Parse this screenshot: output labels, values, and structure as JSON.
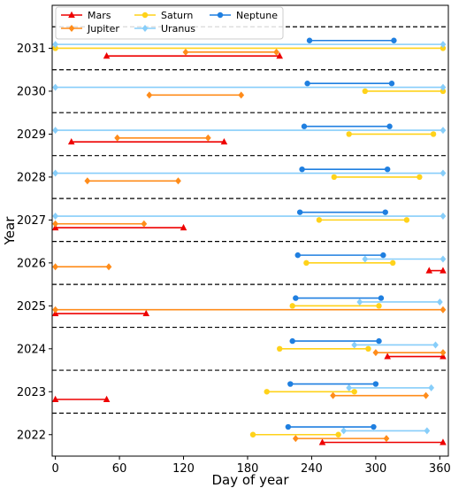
{
  "chart_data": {
    "type": "line",
    "title": "",
    "xlabel": "Day of year",
    "ylabel": "Year",
    "xlim": [
      -3,
      368
    ],
    "ylim": [
      2021.5,
      2032.0
    ],
    "x_ticks": [
      0,
      60,
      120,
      180,
      240,
      300,
      360
    ],
    "y_ticks": [
      2022,
      2023,
      2024,
      2025,
      2026,
      2027,
      2028,
      2029,
      2030,
      2031
    ],
    "year_separators": [
      2022.5,
      2023.5,
      2024.5,
      2025.5,
      2026.5,
      2027.5,
      2028.5,
      2029.5,
      2030.5,
      2031.5
    ],
    "grid": false,
    "legend_position": "top-left",
    "series": [
      {
        "name": "Mars",
        "color": "#ee0000",
        "marker": "triangle",
        "offset": -0.18,
        "intervals": [
          {
            "year": 2022,
            "start": 250,
            "end": 363
          },
          {
            "year": 2023,
            "start": 0,
            "end": 48
          },
          {
            "year": 2024,
            "start": 311,
            "end": 363
          },
          {
            "year": 2025,
            "start": 0,
            "end": 85
          },
          {
            "year": 2026,
            "start": 350,
            "end": 363
          },
          {
            "year": 2027,
            "start": 0,
            "end": 120
          },
          {
            "year": 2029,
            "start": 15,
            "end": 158
          },
          {
            "year": 2031,
            "start": 48,
            "end": 210
          }
        ]
      },
      {
        "name": "Jupiter",
        "color": "#ff8c1a",
        "marker": "diamond",
        "offset": -0.09,
        "intervals": [
          {
            "year": 2022,
            "start": 225,
            "end": 310
          },
          {
            "year": 2023,
            "start": 260,
            "end": 347
          },
          {
            "year": 2024,
            "start": 300,
            "end": 363
          },
          {
            "year": 2025,
            "start": 0,
            "end": 363
          },
          {
            "year": 2026,
            "start": 0,
            "end": 50
          },
          {
            "year": 2027,
            "start": 0,
            "end": 83
          },
          {
            "year": 2028,
            "start": 30,
            "end": 115
          },
          {
            "year": 2029,
            "start": 58,
            "end": 143
          },
          {
            "year": 2030,
            "start": 88,
            "end": 174
          },
          {
            "year": 2031,
            "start": 122,
            "end": 207
          }
        ]
      },
      {
        "name": "Saturn",
        "color": "#ffd21a",
        "marker": "circle",
        "offset": 0.0,
        "intervals": [
          {
            "year": 2022,
            "start": 185,
            "end": 265
          },
          {
            "year": 2023,
            "start": 198,
            "end": 280
          },
          {
            "year": 2024,
            "start": 210,
            "end": 293
          },
          {
            "year": 2025,
            "start": 222,
            "end": 303
          },
          {
            "year": 2026,
            "start": 235,
            "end": 316
          },
          {
            "year": 2027,
            "start": 247,
            "end": 329
          },
          {
            "year": 2028,
            "start": 261,
            "end": 341
          },
          {
            "year": 2029,
            "start": 275,
            "end": 354
          },
          {
            "year": 2030,
            "start": 290,
            "end": 363
          },
          {
            "year": 2031,
            "start": 0,
            "end": 363
          }
        ]
      },
      {
        "name": "Uranus",
        "color": "#87cefa",
        "marker": "diamond",
        "offset": 0.09,
        "intervals": [
          {
            "year": 2022,
            "start": 270,
            "end": 348
          },
          {
            "year": 2023,
            "start": 275,
            "end": 352
          },
          {
            "year": 2024,
            "start": 280,
            "end": 356
          },
          {
            "year": 2025,
            "start": 285,
            "end": 360
          },
          {
            "year": 2026,
            "start": 290,
            "end": 363
          },
          {
            "year": 2027,
            "start": 0,
            "end": 363
          },
          {
            "year": 2028,
            "start": 0,
            "end": 363
          },
          {
            "year": 2029,
            "start": 0,
            "end": 363
          },
          {
            "year": 2030,
            "start": 0,
            "end": 363
          },
          {
            "year": 2031,
            "start": 0,
            "end": 363
          }
        ]
      },
      {
        "name": "Neptune",
        "color": "#1f7fe0",
        "marker": "circle",
        "offset": 0.18,
        "intervals": [
          {
            "year": 2022,
            "start": 218,
            "end": 298
          },
          {
            "year": 2023,
            "start": 220,
            "end": 300
          },
          {
            "year": 2024,
            "start": 222,
            "end": 303
          },
          {
            "year": 2025,
            "start": 225,
            "end": 305
          },
          {
            "year": 2026,
            "start": 227,
            "end": 307
          },
          {
            "year": 2027,
            "start": 229,
            "end": 309
          },
          {
            "year": 2028,
            "start": 231,
            "end": 311
          },
          {
            "year": 2029,
            "start": 233,
            "end": 313
          },
          {
            "year": 2030,
            "start": 236,
            "end": 315
          },
          {
            "year": 2031,
            "start": 238,
            "end": 317
          }
        ]
      }
    ]
  }
}
